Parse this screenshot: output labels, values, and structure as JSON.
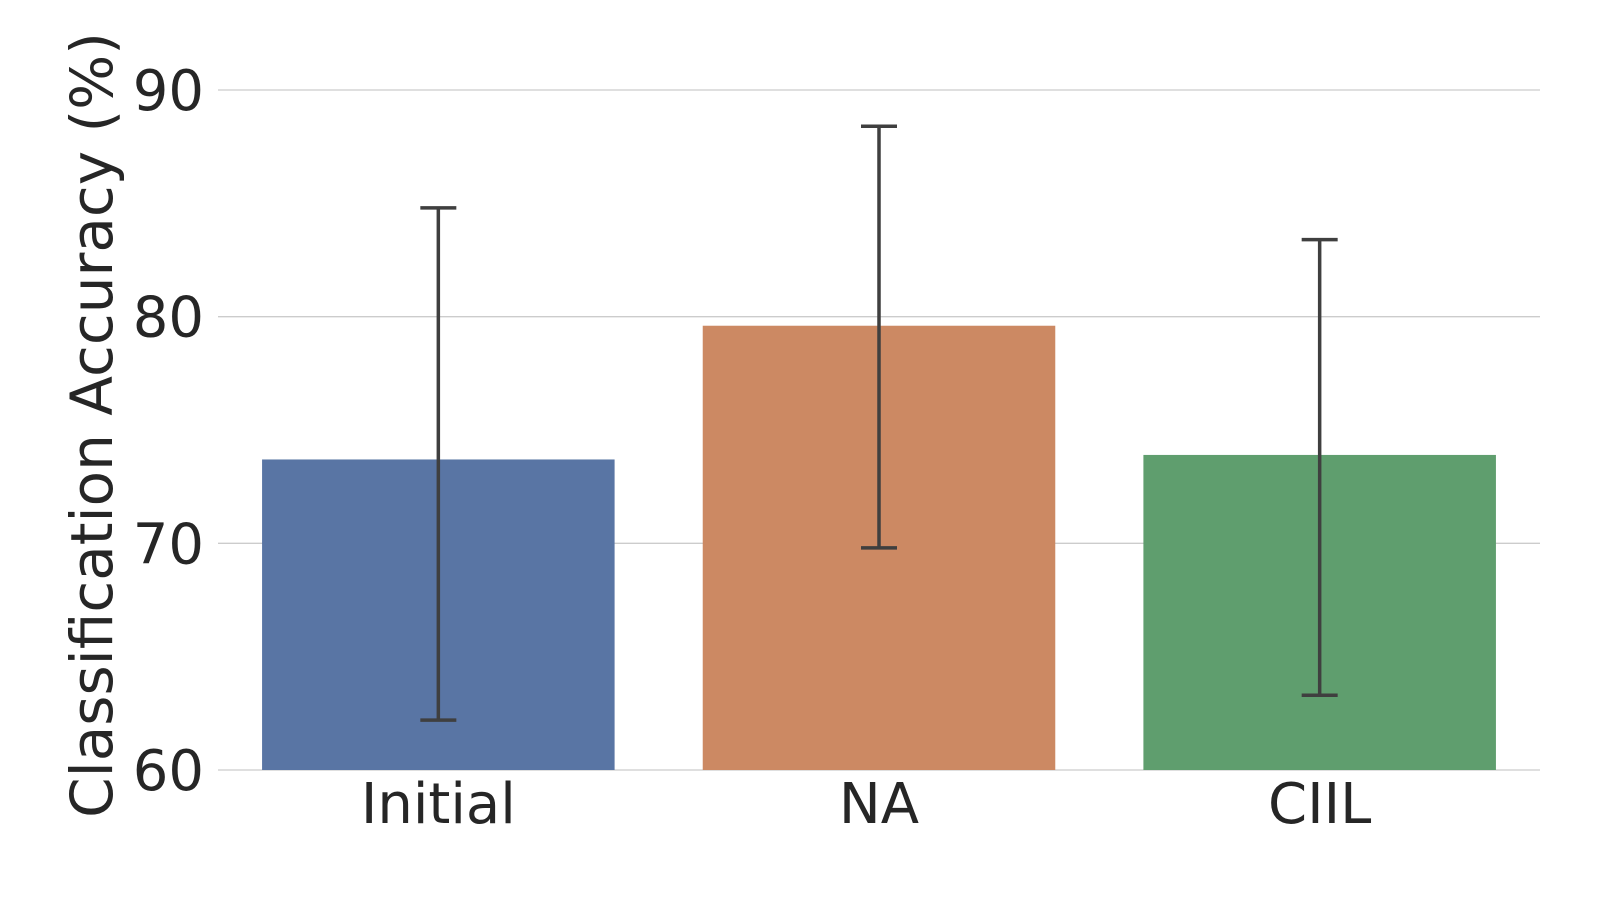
{
  "chart_data": {
    "type": "bar",
    "title": "",
    "xlabel": "",
    "ylabel": "Classification Accuracy (%)",
    "categories": [
      "Initial",
      "NA",
      "CIIL"
    ],
    "values": [
      73.7,
      79.6,
      73.9
    ],
    "error_low": [
      62.2,
      69.8,
      63.3
    ],
    "error_high": [
      84.8,
      88.4,
      83.4
    ],
    "colors": [
      "#5975a4",
      "#cc8963",
      "#5f9e6e"
    ],
    "error_bar_color": "#3f3f3f",
    "grid_color": "#cccccc",
    "ylim": [
      60,
      92
    ],
    "yticks": [
      "60",
      "70",
      "80",
      "90"
    ],
    "ytick_values": [
      60,
      70,
      80,
      90
    ],
    "grid": true,
    "legend": "none"
  }
}
